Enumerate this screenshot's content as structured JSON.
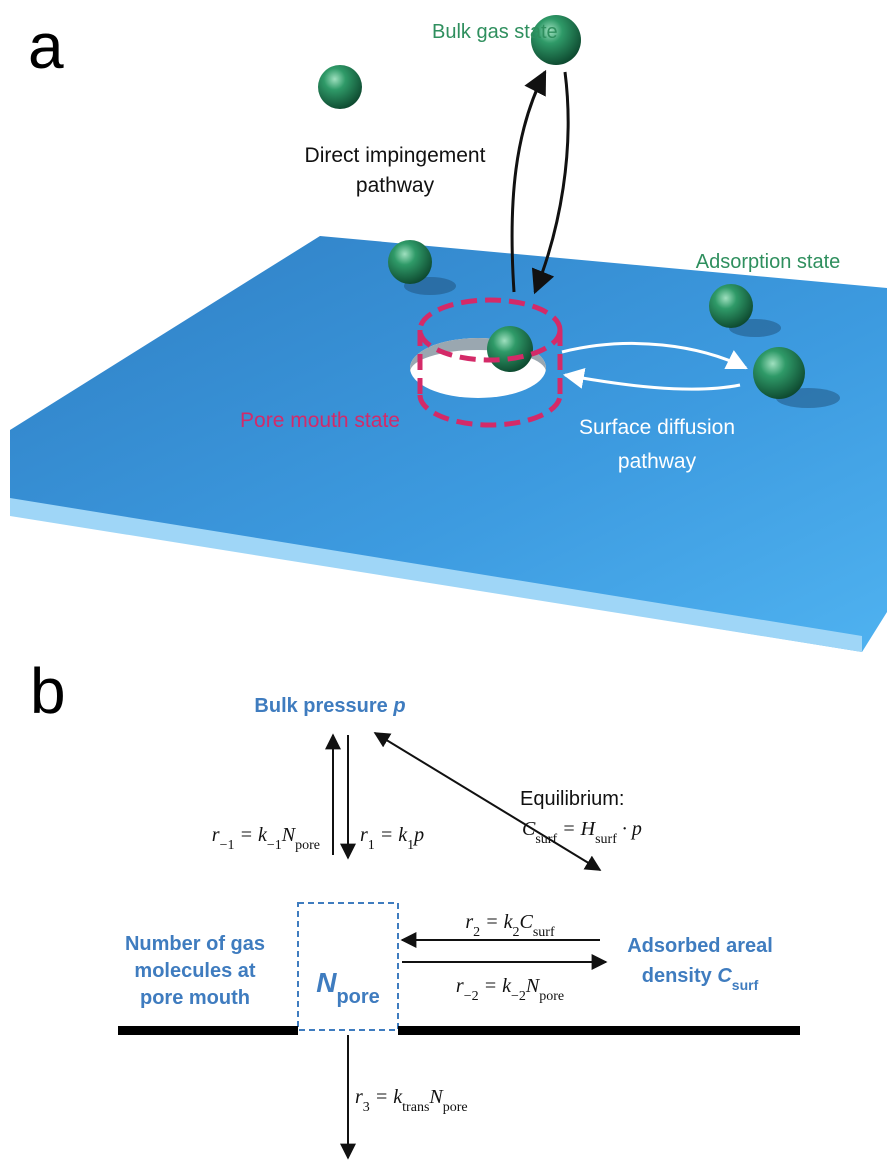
{
  "panel_a": {
    "label": "a",
    "bulk_gas_state": "Bulk gas state",
    "direct_pathway": [
      "Direct impingement",
      "pathway"
    ],
    "adsorption_state": "Adsorption state",
    "pore_mouth_state": "Pore mouth state",
    "surface_pathway": [
      "Surface diffusion",
      "pathway"
    ]
  },
  "panel_b": {
    "label": "b",
    "bulk_pressure": {
      "text": "Bulk pressure ",
      "symbol": "p"
    },
    "equilibrium": "Equilibrium:",
    "equations": {
      "r_minus1": [
        {
          "t": "r",
          "s": "−1"
        },
        {
          "t": " = k",
          "s": "−1"
        },
        {
          "t": "N",
          "s": "pore"
        }
      ],
      "r1": [
        {
          "t": "r",
          "s": "1"
        },
        {
          "t": " = k",
          "s": "1"
        },
        {
          "t": "p"
        }
      ],
      "equilibrium": [
        {
          "t": "C",
          "s": "surf"
        },
        {
          "t": " = H",
          "s": "surf"
        },
        {
          "t": " · p"
        }
      ],
      "r2": [
        {
          "t": "r",
          "s": "2"
        },
        {
          "t": " = k",
          "s": "2"
        },
        {
          "t": "C",
          "s": "surf"
        }
      ],
      "r_minus2": [
        {
          "t": "r",
          "s": "−2"
        },
        {
          "t": " = k",
          "s": "−2"
        },
        {
          "t": "N",
          "s": "pore"
        }
      ],
      "r3": [
        {
          "t": "r",
          "s": "3"
        },
        {
          "t": " = k",
          "s": "trans"
        },
        {
          "t": "N",
          "s": "pore"
        }
      ]
    },
    "pore_molecules": [
      "Number of gas",
      "molecules at",
      "pore mouth"
    ],
    "n_pore": {
      "t": "N",
      "s": "pore"
    },
    "adsorbed": "Adsorbed areal",
    "density": {
      "text": "density ",
      "t": "C",
      "s": "surf"
    }
  }
}
